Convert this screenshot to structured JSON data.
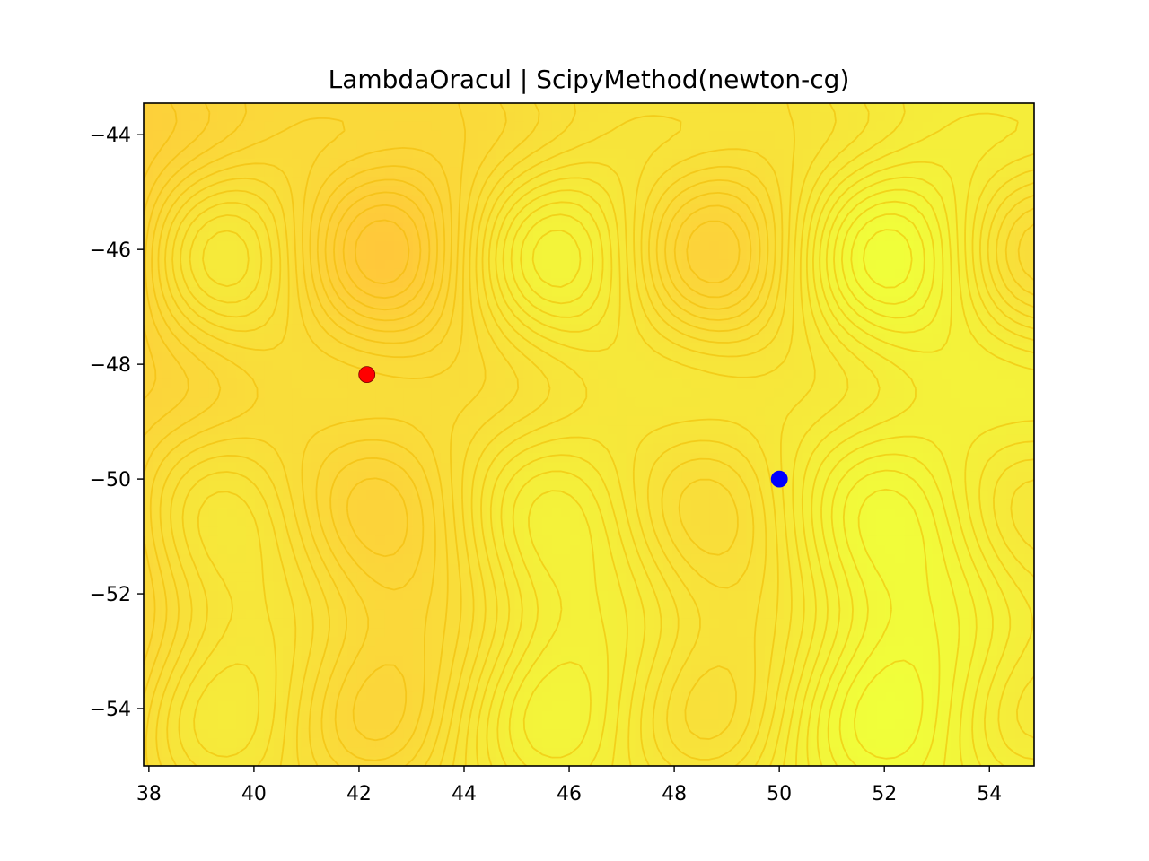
{
  "chart_data": {
    "type": "contour",
    "title": "LambdaOracul | ScipyMethod(newton-cg)",
    "xlabel": "",
    "ylabel": "",
    "xlim": [
      37.9,
      54.85
    ],
    "ylim": [
      -55.0,
      -43.45
    ],
    "x_ticks": [
      38,
      40,
      42,
      44,
      46,
      48,
      50,
      52,
      54
    ],
    "y_ticks": [
      -44,
      -46,
      -48,
      -50,
      -52,
      -54
    ],
    "y_tick_labels": [
      "−44",
      "−46",
      "−48",
      "−50",
      "−52",
      "−54"
    ],
    "grid": false,
    "legend": "none",
    "colormap": "autumn_r (orange to yellow)",
    "colors": {
      "low": "#FFC83A",
      "high": "#F0FF3A",
      "contour_line": "#F0B800"
    },
    "points": [
      {
        "x": 42.15,
        "y": -48.18,
        "color": "#FF0000"
      },
      {
        "x": 50.0,
        "y": -50.0,
        "color": "#0000FF"
      }
    ]
  }
}
